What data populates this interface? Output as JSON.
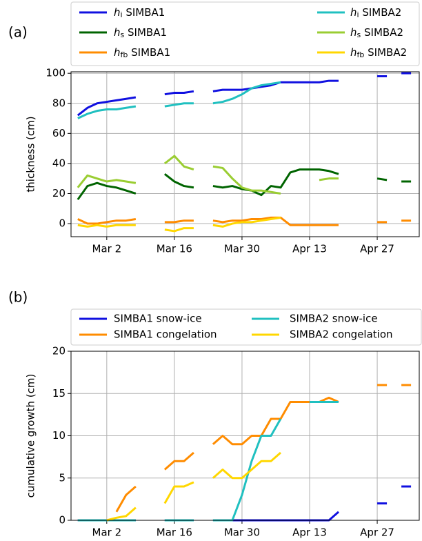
{
  "chart_data": [
    {
      "type": "line",
      "panel_label": "(a)",
      "y_label": "thickness (cm)",
      "x": [
        -6,
        -4,
        -2,
        0,
        2,
        4,
        6,
        8,
        10,
        12,
        14,
        16,
        18,
        20,
        22,
        24,
        26,
        28,
        30,
        32,
        34,
        36,
        38,
        40,
        42,
        44,
        46,
        48,
        50,
        52,
        54,
        56,
        58,
        60,
        62
      ],
      "xlim": [
        -7.4,
        64.7
      ],
      "xticks": [
        {
          "value": 0,
          "label": "Mar 2"
        },
        {
          "value": 14,
          "label": "Mar 16"
        },
        {
          "value": 28,
          "label": "Mar 30"
        },
        {
          "value": 42,
          "label": "Apr 13"
        },
        {
          "value": 56,
          "label": "Apr 27"
        }
      ],
      "ylim": [
        -8.7,
        101
      ],
      "yticks": [
        0,
        20,
        40,
        60,
        80,
        100
      ],
      "grid": true,
      "series": [
        {
          "name": "hi SIMBA1",
          "color": "#1010e0",
          "values": [
            72,
            77,
            80,
            81,
            82,
            83,
            84,
            null,
            null,
            86,
            87,
            87,
            88,
            null,
            88,
            89,
            89,
            89,
            90,
            91,
            92,
            94,
            94,
            94,
            94,
            94,
            95,
            95,
            null,
            null,
            null,
            98,
            98,
            null,
            100
          ]
        },
        {
          "name": "hs SIMBA1",
          "color": "#006400",
          "values": [
            16,
            25,
            27,
            25,
            24,
            22,
            20,
            null,
            null,
            33,
            28,
            25,
            24,
            null,
            25,
            24,
            25,
            23,
            22,
            19,
            25,
            24,
            34,
            36,
            36,
            36,
            35,
            33,
            null,
            null,
            null,
            30,
            29,
            null,
            28
          ]
        },
        {
          "name": "hfb SIMBA1",
          "color": "#ff8c00",
          "values": [
            3,
            0,
            0,
            1,
            2,
            2,
            3,
            null,
            null,
            1,
            1,
            2,
            2,
            null,
            2,
            1,
            2,
            2,
            3,
            3,
            4,
            4,
            -1,
            -1,
            -1,
            -1,
            -1,
            -1,
            null,
            null,
            null,
            1,
            1,
            null,
            2
          ]
        },
        {
          "name": "hi SIMBA2",
          "color": "#20c0c0",
          "values": [
            70,
            73,
            75,
            76,
            76,
            77,
            78,
            null,
            null,
            78,
            79,
            80,
            80,
            null,
            80,
            81,
            83,
            86,
            90,
            92,
            93,
            94,
            null,
            null,
            null,
            null,
            null,
            null,
            null,
            null,
            null,
            null,
            null,
            null,
            null
          ]
        },
        {
          "name": "hs SIMBA2",
          "color": "#9acd32",
          "values": [
            24,
            32,
            30,
            28,
            29,
            28,
            27,
            null,
            null,
            40,
            45,
            38,
            36,
            null,
            38,
            37,
            30,
            24,
            22,
            22,
            21,
            20,
            null,
            null,
            null,
            29,
            30,
            30,
            null,
            null,
            null,
            null,
            null,
            null,
            null
          ]
        },
        {
          "name": "hfb SIMBA2",
          "color": "#ffd700",
          "values": [
            -1,
            -2,
            -1,
            -2,
            -1,
            -1,
            -1,
            null,
            null,
            -4,
            -5,
            -3,
            -3,
            null,
            -1,
            -2,
            0,
            1,
            1,
            2,
            3,
            4,
            null,
            null,
            null,
            null,
            null,
            null,
            null,
            null,
            null,
            null,
            null,
            null,
            null
          ]
        }
      ]
    },
    {
      "type": "line",
      "panel_label": "(b)",
      "y_label": "cumulative growth (cm)",
      "x": [
        -6,
        -4,
        -2,
        0,
        2,
        4,
        6,
        8,
        10,
        12,
        14,
        16,
        18,
        20,
        22,
        24,
        26,
        28,
        30,
        32,
        34,
        36,
        38,
        40,
        42,
        44,
        46,
        48,
        50,
        52,
        54,
        56,
        58,
        60,
        62
      ],
      "xlim": [
        -7.4,
        64.7
      ],
      "xticks": [
        {
          "value": 0,
          "label": "Mar 2"
        },
        {
          "value": 14,
          "label": "Mar 16"
        },
        {
          "value": 28,
          "label": "Mar 30"
        },
        {
          "value": 42,
          "label": "Apr 13"
        },
        {
          "value": 56,
          "label": "Apr 27"
        }
      ],
      "ylim": [
        0,
        20
      ],
      "yticks": [
        0,
        5,
        10,
        15,
        20
      ],
      "grid": true,
      "series": [
        {
          "name": "SIMBA1 snow-ice",
          "color": "#1010e0",
          "values": [
            0,
            0,
            0,
            0,
            0,
            0,
            0,
            null,
            null,
            0,
            0,
            0,
            0,
            null,
            0,
            0,
            0,
            0,
            0,
            0,
            0,
            0,
            0,
            0,
            0,
            0,
            0,
            1,
            null,
            null,
            null,
            2,
            2,
            null,
            4
          ]
        },
        {
          "name": "SIMBA1 congelation",
          "color": "#ff8c00",
          "values": [
            null,
            null,
            null,
            null,
            1,
            3,
            4,
            null,
            null,
            6,
            7,
            7,
            8,
            null,
            9,
            10,
            9,
            9,
            10,
            10,
            12,
            12,
            14,
            14,
            14,
            14,
            14.5,
            14,
            null,
            null,
            null,
            16,
            16,
            null,
            16
          ]
        },
        {
          "name": "SIMBA2 snow-ice",
          "color": "#20c0c0",
          "values": [
            0,
            0,
            0,
            0,
            0,
            0,
            0,
            null,
            null,
            0,
            0,
            0,
            0,
            null,
            0,
            0,
            0,
            3,
            7,
            10,
            10,
            12,
            null,
            null,
            14,
            14,
            14,
            14,
            null,
            null,
            null,
            null,
            null,
            null,
            null
          ]
        },
        {
          "name": "SIMBA2 congelation",
          "color": "#ffd700",
          "values": [
            null,
            null,
            null,
            0,
            0.3,
            0.5,
            1.5,
            null,
            null,
            2,
            4,
            4,
            4.5,
            null,
            5,
            6,
            5,
            5,
            6,
            7,
            7,
            8,
            null,
            null,
            null,
            null,
            null,
            null,
            null,
            null,
            null,
            null,
            null,
            null,
            null
          ]
        }
      ]
    }
  ]
}
